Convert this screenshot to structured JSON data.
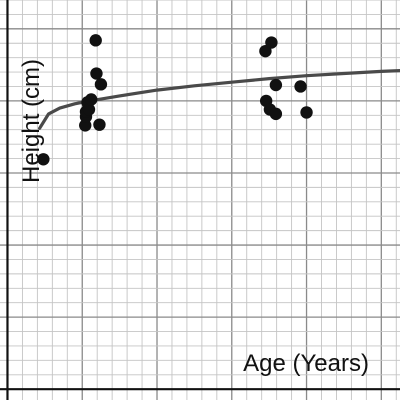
{
  "chart_data": {
    "type": "scatter",
    "xlabel": "Age (Years)",
    "ylabel": "Height (cm)",
    "x_major_step": 1,
    "x_minor_per_major": 5,
    "y_major_step": 1,
    "y_minor_per_major": 5,
    "xlim": [
      -0.1,
      5.25
    ],
    "ylim": [
      -0.15,
      5.4
    ],
    "grid": true,
    "points": [
      {
        "x": 0.48,
        "y": 3.19
      },
      {
        "x": 1.04,
        "y": 3.66
      },
      {
        "x": 1.05,
        "y": 3.78
      },
      {
        "x": 1.05,
        "y": 3.85
      },
      {
        "x": 1.07,
        "y": 3.98
      },
      {
        "x": 1.09,
        "y": 3.88
      },
      {
        "x": 1.12,
        "y": 4.02
      },
      {
        "x": 1.18,
        "y": 4.84
      },
      {
        "x": 1.19,
        "y": 4.38
      },
      {
        "x": 1.23,
        "y": 3.67
      },
      {
        "x": 1.25,
        "y": 4.23
      },
      {
        "x": 3.45,
        "y": 4.69
      },
      {
        "x": 3.46,
        "y": 4.0
      },
      {
        "x": 3.51,
        "y": 3.88
      },
      {
        "x": 3.53,
        "y": 4.81
      },
      {
        "x": 3.59,
        "y": 3.82
      },
      {
        "x": 3.59,
        "y": 4.22
      },
      {
        "x": 3.92,
        "y": 4.2
      },
      {
        "x": 4.0,
        "y": 3.84
      }
    ],
    "trend": {
      "type": "power",
      "x": [
        0.43,
        0.55,
        0.7,
        0.9,
        1.1,
        1.5,
        2.0,
        2.5,
        3.0,
        3.5,
        4.0,
        4.5,
        5.0,
        5.25
      ],
      "y": [
        3.62,
        3.82,
        3.9,
        3.96,
        4.0,
        4.07,
        4.15,
        4.21,
        4.26,
        4.31,
        4.35,
        4.38,
        4.41,
        4.42
      ]
    }
  }
}
